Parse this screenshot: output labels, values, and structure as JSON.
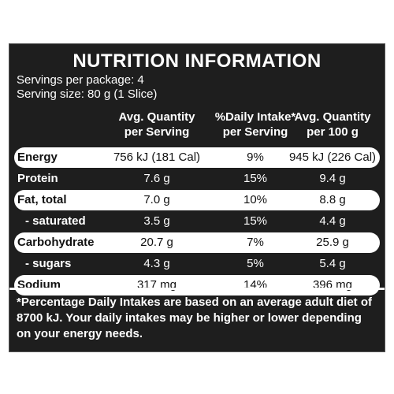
{
  "panel": {
    "title": "NUTRITION INFORMATION",
    "servings_per_package": "Servings per package: 4",
    "serving_size": "Serving size: 80 g (1 Slice)"
  },
  "table": {
    "headers": [
      "Avg. Quantity\nper Serving",
      "%Daily Intake*\nper Serving",
      "Avg. Quantity\nper 100 g"
    ],
    "rows": [
      {
        "label": "Energy",
        "per_serving": "756 kJ (181 Cal)",
        "daily_intake": "9%",
        "per_100g": "945 kJ (226 Cal)"
      },
      {
        "label": "Protein",
        "per_serving": "7.6 g",
        "daily_intake": "15%",
        "per_100g": "9.4 g"
      },
      {
        "label": "Fat, total",
        "per_serving": "7.0 g",
        "daily_intake": "10%",
        "per_100g": "8.8 g"
      },
      {
        "label": "- saturated",
        "per_serving": "3.5 g",
        "daily_intake": "15%",
        "per_100g": "4.4 g"
      },
      {
        "label": "Carbohydrate",
        "per_serving": "20.7 g",
        "daily_intake": "7%",
        "per_100g": "25.9 g"
      },
      {
        "label": "- sugars",
        "per_serving": "4.3 g",
        "daily_intake": "5%",
        "per_100g": "5.4 g"
      },
      {
        "label": "Sodium",
        "per_serving": "317 mg",
        "daily_intake": "14%",
        "per_100g": "396 mg"
      }
    ]
  },
  "footnote": "*Percentage Daily Intakes are based on an average adult diet of 8700 kJ. Your daily intakes may be higher or lower depending on your energy needs.",
  "colors": {
    "panel_background": "#1e1e1e",
    "band_background": "#ffffff",
    "text_light": "#ffffff",
    "text_dark": "#111111"
  }
}
